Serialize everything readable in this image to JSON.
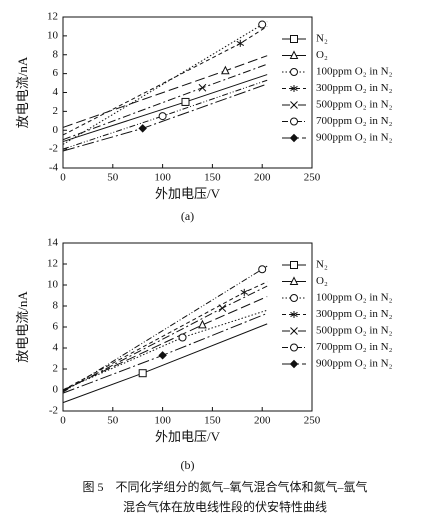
{
  "chart_data": [
    {
      "type": "line",
      "caption": "(a)",
      "x_label": "外加电压/V",
      "y_label": "放电电流/nA",
      "xlim": [
        0,
        250
      ],
      "xticks": [
        0,
        50,
        100,
        150,
        200,
        250
      ],
      "ylim": [
        -4,
        12
      ],
      "yticks": [
        -4,
        -2,
        0,
        2,
        4,
        6,
        8,
        10,
        12
      ],
      "series": [
        {
          "name": "N₂",
          "color": "#111",
          "dash": "none",
          "marker": "square",
          "x": [
            0,
            123,
            205
          ],
          "values": [
            -1.2,
            3.0,
            5.9
          ]
        },
        {
          "name": "O₂",
          "color": "#111",
          "dash": "10 4",
          "marker": "triangle",
          "x": [
            0,
            163,
            205
          ],
          "values": [
            0.3,
            6.3,
            7.9
          ]
        },
        {
          "name": "100ppm O₂ in N₂",
          "color": "#111",
          "dash": "1.5 2",
          "marker": "circle",
          "x": [
            0,
            200,
            205
          ],
          "values": [
            -1.5,
            11.2,
            11.5
          ]
        },
        {
          "name": "300ppm O₂ in N₂",
          "color": "#111",
          "dash": "4 3",
          "marker": "star",
          "x": [
            0,
            178,
            205
          ],
          "values": [
            -0.5,
            9.2,
            11.0
          ]
        },
        {
          "name": "500ppm O₂ in N₂",
          "color": "#111",
          "dash": "8 3 2 3",
          "marker": "x",
          "x": [
            0,
            140,
            205
          ],
          "values": [
            -1.0,
            4.5,
            7.0
          ]
        },
        {
          "name": "700ppm O₂ in N₂",
          "color": "#111",
          "dash": "6 2 1 2 1 2",
          "marker": "circle",
          "x": [
            0,
            100,
            205
          ],
          "values": [
            -2.0,
            1.5,
            5.3
          ]
        },
        {
          "name": "900ppm O₂ in N₂",
          "color": "#111",
          "dash": "12 3 2 3",
          "marker": "diamond",
          "x": [
            0,
            80,
            205
          ],
          "values": [
            -2.2,
            0.2,
            4.9
          ]
        }
      ]
    },
    {
      "type": "line",
      "caption": "(b)",
      "x_label": "外加电压/V",
      "y_label": "放电电流/nA",
      "xlim": [
        0,
        250
      ],
      "xticks": [
        0,
        50,
        100,
        150,
        200,
        250
      ],
      "ylim": [
        -2,
        14
      ],
      "yticks": [
        -2,
        0,
        2,
        4,
        6,
        8,
        10,
        12,
        14
      ],
      "series": [
        {
          "name": "N₂",
          "color": "#111",
          "dash": "none",
          "marker": "square",
          "x": [
            0,
            80,
            205
          ],
          "values": [
            -1.2,
            1.6,
            6.3
          ]
        },
        {
          "name": "O₂",
          "color": "#111",
          "dash": "10 4",
          "marker": "triangle",
          "x": [
            0,
            140,
            205
          ],
          "values": [
            0.0,
            6.2,
            8.9
          ]
        },
        {
          "name": "100ppm O₂ in N₂",
          "color": "#111",
          "dash": "1.5 2",
          "marker": "circle",
          "x": [
            0,
            120,
            205
          ],
          "values": [
            0.0,
            5.0,
            7.6
          ]
        },
        {
          "name": "300ppm O₂ in N₂",
          "color": "#111",
          "dash": "4 3",
          "marker": "star",
          "x": [
            0,
            182,
            205
          ],
          "values": [
            0.0,
            9.3,
            10.3
          ]
        },
        {
          "name": "500ppm O₂ in N₂",
          "color": "#111",
          "dash": "8 3 2 3",
          "marker": "x",
          "x": [
            0,
            160,
            205
          ],
          "values": [
            -0.1,
            7.8,
            9.9
          ]
        },
        {
          "name": "700ppm O₂ in N₂",
          "color": "#111",
          "dash": "6 2 1 2 1 2",
          "marker": "circle",
          "x": [
            0,
            200,
            205
          ],
          "values": [
            -0.2,
            11.5,
            11.8
          ]
        },
        {
          "name": "900ppm O₂ in N₂",
          "color": "#111",
          "dash": "12 3 2 3",
          "marker": "diamond",
          "x": [
            0,
            100,
            205
          ],
          "values": [
            -0.3,
            3.3,
            7.3
          ]
        }
      ]
    }
  ],
  "figure_caption": [
    "图 5　不同化学组分的氮气–氧气混合气体和氮气–氩气",
    "混合气体在放电线性段的伏安特性曲线"
  ]
}
